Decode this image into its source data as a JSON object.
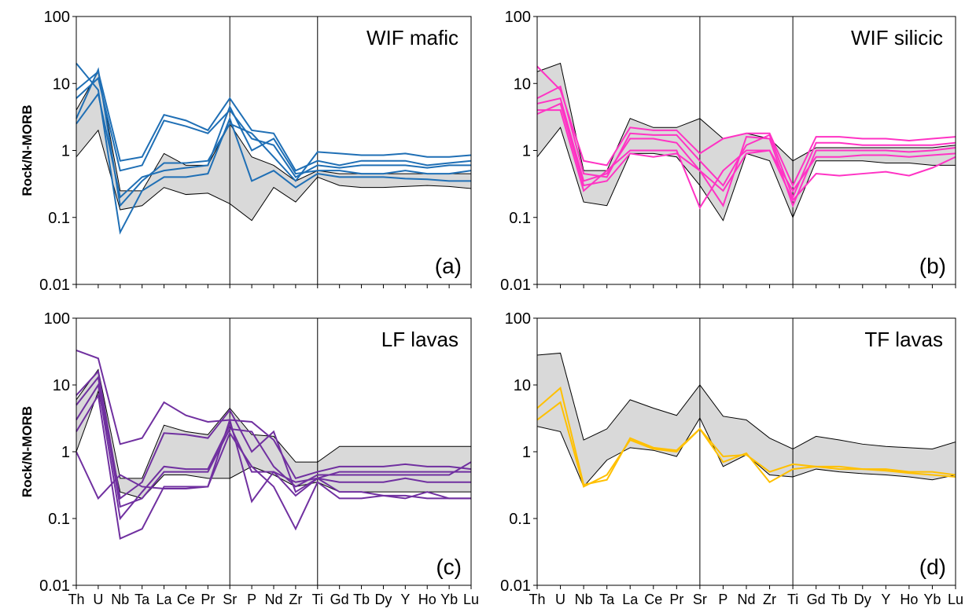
{
  "chart_data": [
    {
      "type": "line",
      "title": "WIF mafic",
      "panel_label": "(a)",
      "y_label": "Rock/N-MORB",
      "log_scale": true,
      "ylim": [
        0.01,
        100
      ],
      "yticks": [
        0.01,
        0.1,
        1,
        10,
        100
      ],
      "dividers": [
        7,
        11
      ],
      "categories": [
        null,
        null,
        null,
        null,
        null,
        null,
        null,
        null,
        null,
        null,
        null,
        null,
        null,
        null,
        null,
        null,
        null,
        null,
        null
      ],
      "envelope": {
        "color": "#d9d9d9",
        "upper": [
          4,
          15,
          0.25,
          0.25,
          0.9,
          0.6,
          0.6,
          2.5,
          0.8,
          0.6,
          0.35,
          0.5,
          0.45,
          0.45,
          0.45,
          0.45,
          0.45,
          0.45,
          0.45
        ],
        "lower": [
          0.8,
          2,
          0.13,
          0.15,
          0.28,
          0.22,
          0.23,
          0.16,
          0.09,
          0.28,
          0.17,
          0.4,
          0.3,
          0.28,
          0.28,
          0.29,
          0.3,
          0.29,
          0.27
        ]
      },
      "series": [
        {
          "color": "#1f6fb5",
          "values": [
            8,
            15,
            0.7,
            0.8,
            3.4,
            2.8,
            2,
            6,
            2,
            1.8,
            0.5,
            0.7,
            0.6,
            0.7,
            0.7,
            0.7,
            0.6,
            0.65,
            0.7
          ]
        },
        {
          "color": "#1f6fb5",
          "values": [
            6,
            12,
            0.5,
            0.6,
            2.8,
            2.3,
            1.8,
            4,
            1.5,
            1.2,
            0.4,
            0.6,
            0.55,
            0.6,
            0.6,
            0.6,
            0.55,
            0.6,
            0.6
          ]
        },
        {
          "color": "#1f6fb5",
          "values": [
            20,
            8,
            0.06,
            0.25,
            0.4,
            0.4,
            0.45,
            3,
            0.35,
            0.5,
            0.28,
            0.45,
            0.4,
            0.4,
            0.4,
            0.38,
            0.37,
            0.35,
            0.35
          ]
        },
        {
          "color": "#1f6fb5",
          "values": [
            3,
            16,
            0.15,
            0.35,
            0.65,
            0.65,
            0.7,
            2.5,
            1.8,
            0.8,
            0.35,
            0.95,
            0.9,
            0.85,
            0.85,
            0.9,
            0.8,
            0.8,
            0.85
          ]
        },
        {
          "color": "#1f6fb5",
          "values": [
            2.5,
            7,
            0.2,
            0.4,
            0.5,
            0.55,
            0.6,
            4.5,
            1.0,
            1.5,
            0.45,
            0.5,
            0.5,
            0.45,
            0.45,
            0.5,
            0.45,
            0.45,
            0.5
          ]
        }
      ]
    },
    {
      "type": "line",
      "title": "WIF silicic",
      "panel_label": "(b)",
      "log_scale": true,
      "ylim": [
        0.01,
        100
      ],
      "yticks": [
        0.01,
        0.1,
        1,
        10,
        100
      ],
      "dividers": [
        7,
        11
      ],
      "categories": [
        null,
        null,
        null,
        null,
        null,
        null,
        null,
        null,
        null,
        null,
        null,
        null,
        null,
        null,
        null,
        null,
        null,
        null,
        null
      ],
      "envelope": {
        "color": "#d9d9d9",
        "upper": [
          15,
          20,
          0.5,
          0.5,
          3,
          2.2,
          2.2,
          3,
          1.5,
          1.8,
          1.5,
          0.7,
          1.1,
          1.1,
          1.1,
          1.1,
          1.1,
          1.1,
          1.2
        ],
        "lower": [
          0.8,
          2.2,
          0.17,
          0.15,
          0.9,
          0.9,
          0.8,
          0.3,
          0.09,
          0.9,
          0.7,
          0.1,
          0.7,
          0.7,
          0.7,
          0.65,
          0.65,
          0.6,
          0.6
        ]
      },
      "series": [
        {
          "color": "#ff33c4",
          "values": [
            18,
            8,
            0.7,
            0.6,
            2.2,
            2,
            2,
            0.9,
            1.5,
            1.8,
            1.8,
            0.3,
            1.6,
            1.6,
            1.5,
            1.5,
            1.4,
            1.5,
            1.6
          ]
        },
        {
          "color": "#ff33c4",
          "values": [
            5,
            6,
            0.35,
            0.45,
            1.5,
            1.5,
            1.3,
            0.5,
            0.15,
            1.6,
            1.5,
            0.15,
            1.0,
            1.0,
            1.0,
            1.0,
            0.95,
            1.0,
            1.1
          ]
        },
        {
          "color": "#ff33c4",
          "values": [
            4,
            4,
            0.25,
            0.5,
            1.0,
            1.0,
            1.0,
            0.14,
            0.5,
            1.0,
            1.0,
            0.25,
            0.8,
            0.8,
            0.85,
            0.85,
            0.8,
            0.85,
            0.9
          ]
        },
        {
          "color": "#ff33c4",
          "values": [
            6,
            9,
            0.45,
            0.4,
            1.8,
            1.7,
            1.7,
            0.7,
            0.3,
            1.2,
            1.7,
            0.2,
            1.3,
            1.3,
            1.2,
            1.2,
            1.2,
            1.2,
            1.3
          ]
        },
        {
          "color": "#ff33c4",
          "values": [
            3.5,
            5,
            0.3,
            0.35,
            0.9,
            0.8,
            0.9,
            0.5,
            0.25,
            0.9,
            1.0,
            0.18,
            0.45,
            0.42,
            0.45,
            0.48,
            0.42,
            0.55,
            0.8
          ]
        }
      ]
    },
    {
      "type": "line",
      "title": "LF lavas",
      "panel_label": "(c)",
      "y_label": "Rock/N-MORB",
      "log_scale": true,
      "ylim": [
        0.01,
        100
      ],
      "yticks": [
        0.01,
        0.1,
        1,
        10,
        100
      ],
      "dividers": [
        7,
        11
      ],
      "categories": [
        "Th",
        "U",
        "Nb",
        "Ta",
        "La",
        "Ce",
        "Pr",
        "Sr",
        "P",
        "Nd",
        "Zr",
        "Ti",
        "Gd",
        "Tb",
        "Dy",
        "Y",
        "Ho",
        "Yb",
        "Lu"
      ],
      "envelope": {
        "color": "#d9d9d9",
        "upper": [
          6,
          17,
          0.4,
          0.4,
          2.5,
          2.0,
          1.8,
          4.5,
          1.8,
          1.7,
          0.7,
          0.7,
          1.2,
          1.2,
          1.2,
          1.2,
          1.2,
          1.2,
          1.2
        ],
        "lower": [
          1,
          8,
          0.25,
          0.2,
          0.45,
          0.45,
          0.4,
          0.4,
          0.6,
          0.45,
          0.3,
          0.35,
          0.25,
          0.25,
          0.25,
          0.25,
          0.25,
          0.25,
          0.25
        ]
      },
      "series": [
        {
          "color": "#7030a0",
          "values": [
            33,
            25,
            1.3,
            1.6,
            5.5,
            3.5,
            2.8,
            3,
            2.8,
            1.5,
            0.4,
            0.5,
            0.6,
            0.6,
            0.6,
            0.65,
            0.6,
            0.6,
            0.55
          ]
        },
        {
          "color": "#7030a0",
          "values": [
            7,
            16,
            0.2,
            0.35,
            1.9,
            1.8,
            1.6,
            4.2,
            1.0,
            2.0,
            0.25,
            0.4,
            0.5,
            0.5,
            0.5,
            0.5,
            0.5,
            0.5,
            0.5
          ]
        },
        {
          "color": "#7030a0",
          "values": [
            1,
            0.2,
            0.45,
            0.3,
            0.28,
            0.28,
            0.3,
            3,
            0.18,
            0.5,
            0.35,
            0.4,
            0.25,
            0.25,
            0.22,
            0.2,
            0.25,
            0.2,
            0.2
          ]
        },
        {
          "color": "#7030a0",
          "values": [
            2,
            7,
            0.05,
            0.07,
            0.3,
            0.3,
            0.3,
            1.9,
            0.6,
            0.3,
            0.07,
            0.35,
            0.2,
            0.2,
            0.22,
            0.22,
            0.2,
            0.2,
            0.2
          ]
        },
        {
          "color": "#7030a0",
          "values": [
            3,
            10,
            0.1,
            0.25,
            0.6,
            0.55,
            0.55,
            2.5,
            0.5,
            0.5,
            0.22,
            0.4,
            0.35,
            0.35,
            0.35,
            0.4,
            0.35,
            0.35,
            0.35
          ]
        },
        {
          "color": "#7030a0",
          "values": [
            5,
            13,
            0.15,
            0.2,
            0.5,
            0.5,
            0.5,
            2.2,
            2.0,
            0.6,
            0.3,
            0.45,
            0.45,
            0.45,
            0.45,
            0.45,
            0.45,
            0.45,
            0.7
          ]
        }
      ]
    },
    {
      "type": "line",
      "title": "TF lavas",
      "panel_label": "(d)",
      "log_scale": true,
      "ylim": [
        0.01,
        100
      ],
      "yticks": [
        0.01,
        0.1,
        1,
        10,
        100
      ],
      "dividers": [
        7,
        11
      ],
      "categories": [
        "Th",
        "U",
        "Nb",
        "Ta",
        "La",
        "Ce",
        "Pr",
        "Sr",
        "P",
        "Nd",
        "Zr",
        "Ti",
        "Gd",
        "Tb",
        "Dy",
        "Y",
        "Ho",
        "Yb",
        "Lu"
      ],
      "envelope": {
        "color": "#d9d9d9",
        "upper": [
          28,
          30,
          1.5,
          2.2,
          6,
          4.5,
          3.5,
          10,
          3.4,
          3,
          1.6,
          1.1,
          1.7,
          1.5,
          1.3,
          1.2,
          1.15,
          1.1,
          1.4
        ],
        "lower": [
          2.4,
          2.0,
          0.3,
          0.75,
          1.15,
          1.05,
          0.85,
          3.2,
          0.6,
          0.9,
          0.45,
          0.42,
          0.55,
          0.5,
          0.47,
          0.45,
          0.42,
          0.38,
          0.45
        ]
      },
      "series": [
        {
          "color": "#ffc000",
          "values": [
            4.5,
            9,
            0.32,
            0.38,
            1.6,
            1.15,
            1.05,
            2.2,
            0.7,
            0.95,
            0.35,
            0.55,
            0.6,
            0.55,
            0.55,
            0.55,
            0.5,
            0.5,
            0.45
          ]
        },
        {
          "color": "#ffc000",
          "values": [
            3,
            5.5,
            0.3,
            0.45,
            1.5,
            1.1,
            1.0,
            2.2,
            0.85,
            0.9,
            0.5,
            0.65,
            0.6,
            0.6,
            0.55,
            0.52,
            0.48,
            0.45,
            0.42
          ]
        }
      ]
    }
  ]
}
